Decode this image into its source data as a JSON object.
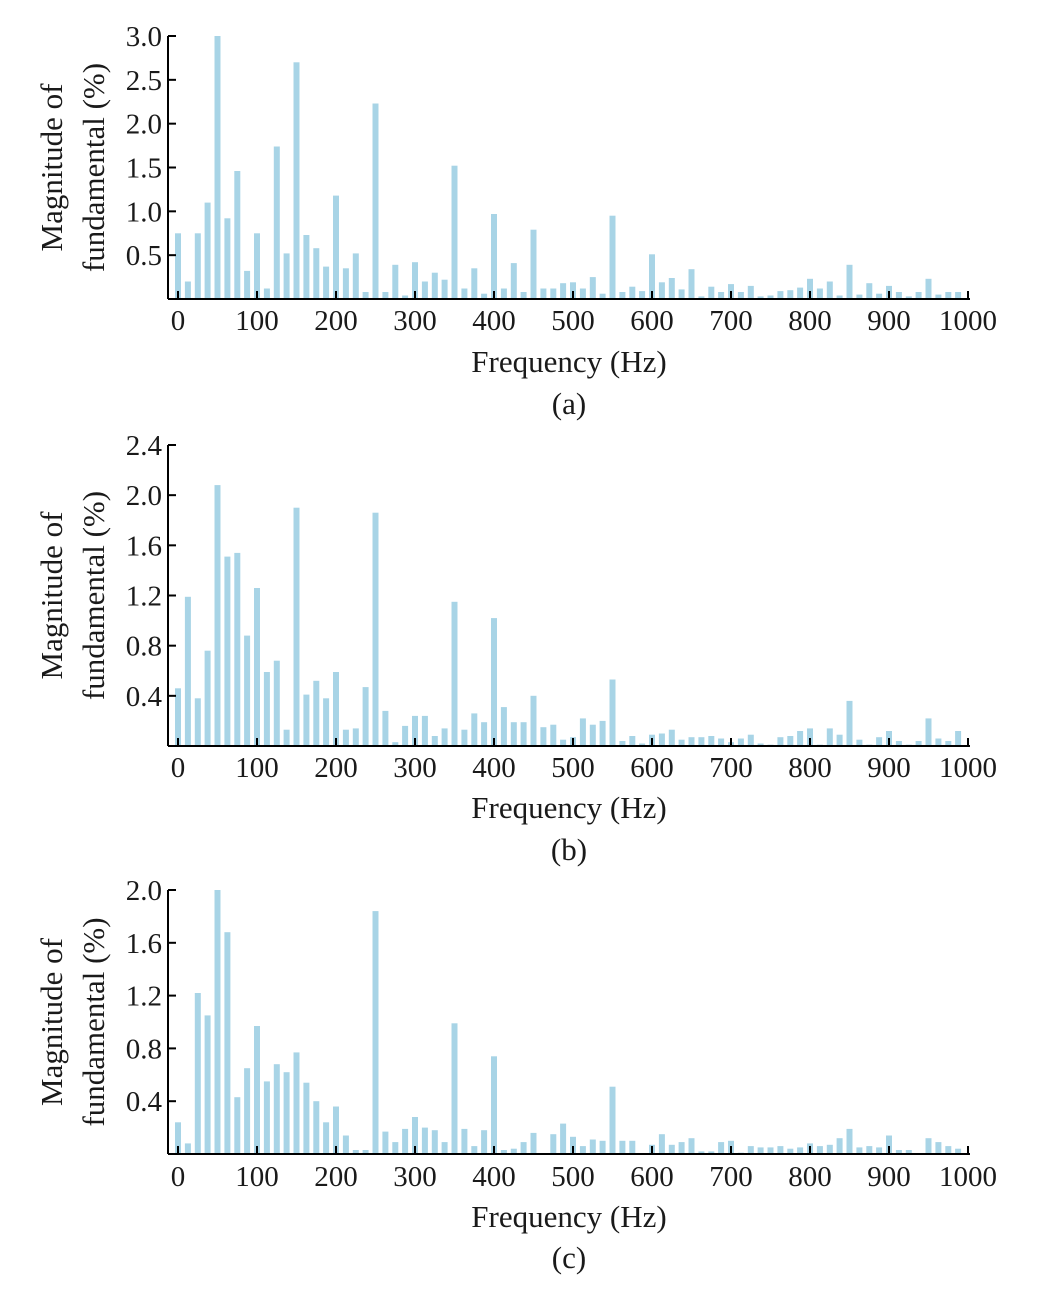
{
  "colors": {
    "bar": "#a8d4e6",
    "axis": "#000000",
    "text": "#1a1a1a"
  },
  "chart_data": [
    {
      "type": "bar",
      "caption": "(a)",
      "xlabel": "Frequency (Hz)",
      "ylabel": [
        "Magnitude of",
        "fundamental (%)"
      ],
      "xlim": [
        0,
        1000
      ],
      "ylim": [
        0,
        3.0
      ],
      "xticks": [
        "0",
        "100",
        "200",
        "300",
        "400",
        "500",
        "600",
        "700",
        "800",
        "900",
        "1000"
      ],
      "yticks": [
        "0.5",
        "1.0",
        "1.5",
        "2.0",
        "2.5",
        "3.0"
      ],
      "grid": false,
      "x": [
        0,
        12.5,
        25,
        37.5,
        50,
        62.5,
        75,
        87.5,
        100,
        112.5,
        125,
        137.5,
        150,
        162.5,
        175,
        187.5,
        200,
        212.5,
        225,
        237.5,
        250,
        262.5,
        275,
        287.5,
        300,
        312.5,
        325,
        337.5,
        350,
        362.5,
        375,
        387.5,
        400,
        412.5,
        425,
        437.5,
        450,
        462.5,
        475,
        487.5,
        500,
        512.5,
        525,
        537.5,
        550,
        562.5,
        575,
        587.5,
        600,
        612.5,
        625,
        637.5,
        650,
        662.5,
        675,
        687.5,
        700,
        712.5,
        725,
        737.5,
        750,
        762.5,
        775,
        787.5,
        800,
        812.5,
        825,
        837.5,
        850,
        862.5,
        875,
        887.5,
        900,
        912.5,
        925,
        937.5,
        950,
        962.5,
        975,
        987.5
      ],
      "values": [
        0.75,
        0.2,
        0.75,
        1.1,
        3.0,
        0.92,
        1.46,
        0.32,
        0.75,
        0.12,
        1.74,
        0.52,
        2.7,
        0.73,
        0.58,
        0.37,
        1.18,
        0.35,
        0.52,
        0.08,
        2.23,
        0.08,
        0.39,
        0.04,
        0.42,
        0.2,
        0.3,
        0.22,
        1.52,
        0.12,
        0.35,
        0.06,
        0.97,
        0.12,
        0.41,
        0.08,
        0.79,
        0.12,
        0.12,
        0.18,
        0.19,
        0.12,
        0.25,
        0.06,
        0.95,
        0.08,
        0.14,
        0.09,
        0.51,
        0.19,
        0.24,
        0.11,
        0.34,
        0.03,
        0.14,
        0.08,
        0.17,
        0.08,
        0.15,
        0.03,
        0.04,
        0.09,
        0.1,
        0.13,
        0.23,
        0.12,
        0.2,
        0.04,
        0.39,
        0.05,
        0.18,
        0.06,
        0.15,
        0.08,
        0.03,
        0.08,
        0.23,
        0.05,
        0.08,
        0.08
      ]
    },
    {
      "type": "bar",
      "caption": "(b)",
      "xlabel": "Frequency (Hz)",
      "ylabel": [
        "Magnitude of",
        "fundamental (%)"
      ],
      "xlim": [
        0,
        1000
      ],
      "ylim": [
        0,
        2.4
      ],
      "xticks": [
        "0",
        "100",
        "200",
        "300",
        "400",
        "500",
        "600",
        "700",
        "800",
        "900",
        "1000"
      ],
      "yticks": [
        "0.4",
        "0.8",
        "1.2",
        "1.6",
        "2.0",
        "2.4"
      ],
      "grid": false,
      "x": [
        0,
        12.5,
        25,
        37.5,
        50,
        62.5,
        75,
        87.5,
        100,
        112.5,
        125,
        137.5,
        150,
        162.5,
        175,
        187.5,
        200,
        212.5,
        225,
        237.5,
        250,
        262.5,
        275,
        287.5,
        300,
        312.5,
        325,
        337.5,
        350,
        362.5,
        375,
        387.5,
        400,
        412.5,
        425,
        437.5,
        450,
        462.5,
        475,
        487.5,
        500,
        512.5,
        525,
        537.5,
        550,
        562.5,
        575,
        587.5,
        600,
        612.5,
        625,
        637.5,
        650,
        662.5,
        675,
        687.5,
        700,
        712.5,
        725,
        737.5,
        750,
        762.5,
        775,
        787.5,
        800,
        812.5,
        825,
        837.5,
        850,
        862.5,
        875,
        887.5,
        900,
        912.5,
        925,
        937.5,
        950,
        962.5,
        975,
        987.5
      ],
      "values": [
        0.46,
        1.19,
        0.38,
        0.76,
        2.08,
        1.51,
        1.54,
        0.88,
        1.26,
        0.59,
        0.68,
        0.13,
        1.9,
        0.41,
        0.52,
        0.38,
        0.59,
        0.13,
        0.14,
        0.47,
        1.86,
        0.28,
        0.03,
        0.16,
        0.24,
        0.24,
        0.08,
        0.14,
        1.15,
        0.13,
        0.26,
        0.19,
        1.02,
        0.31,
        0.19,
        0.19,
        0.4,
        0.15,
        0.17,
        0.05,
        0.07,
        0.22,
        0.17,
        0.2,
        0.53,
        0.04,
        0.08,
        0.02,
        0.09,
        0.1,
        0.13,
        0.05,
        0.07,
        0.07,
        0.08,
        0.06,
        0.03,
        0.06,
        0.09,
        0.02,
        0.01,
        0.07,
        0.08,
        0.12,
        0.14,
        0.01,
        0.14,
        0.09,
        0.36,
        0.05,
        0.01,
        0.07,
        0.12,
        0.04,
        0.01,
        0.04,
        0.22,
        0.06,
        0.04,
        0.12
      ]
    },
    {
      "type": "bar",
      "caption": "(c)",
      "xlabel": "Frequency (Hz)",
      "ylabel": [
        "Magnitude of",
        "fundamental (%)"
      ],
      "xlim": [
        0,
        1000
      ],
      "ylim": [
        0,
        2.0
      ],
      "xticks": [
        "0",
        "100",
        "200",
        "300",
        "400",
        "500",
        "600",
        "700",
        "800",
        "900",
        "1000"
      ],
      "yticks": [
        "0.4",
        "0.8",
        "1.2",
        "1.6",
        "2.0"
      ],
      "grid": false,
      "x": [
        0,
        12.5,
        25,
        37.5,
        50,
        62.5,
        75,
        87.5,
        100,
        112.5,
        125,
        137.5,
        150,
        162.5,
        175,
        187.5,
        200,
        212.5,
        225,
        237.5,
        250,
        262.5,
        275,
        287.5,
        300,
        312.5,
        325,
        337.5,
        350,
        362.5,
        375,
        387.5,
        400,
        412.5,
        425,
        437.5,
        450,
        462.5,
        475,
        487.5,
        500,
        512.5,
        525,
        537.5,
        550,
        562.5,
        575,
        587.5,
        600,
        612.5,
        625,
        637.5,
        650,
        662.5,
        675,
        687.5,
        700,
        712.5,
        725,
        737.5,
        750,
        762.5,
        775,
        787.5,
        800,
        812.5,
        825,
        837.5,
        850,
        862.5,
        875,
        887.5,
        900,
        912.5,
        925,
        937.5,
        950,
        962.5,
        975,
        987.5
      ],
      "values": [
        0.24,
        0.08,
        1.22,
        1.05,
        2.0,
        1.68,
        0.43,
        0.65,
        0.97,
        0.55,
        0.68,
        0.62,
        0.77,
        0.54,
        0.4,
        0.24,
        0.36,
        0.14,
        0.03,
        0.03,
        1.84,
        0.17,
        0.09,
        0.19,
        0.28,
        0.2,
        0.18,
        0.09,
        0.99,
        0.19,
        0.06,
        0.18,
        0.74,
        0.03,
        0.04,
        0.09,
        0.16,
        0.0,
        0.15,
        0.23,
        0.13,
        0.06,
        0.11,
        0.1,
        0.51,
        0.1,
        0.1,
        0.0,
        0.07,
        0.15,
        0.07,
        0.09,
        0.12,
        0.02,
        0.02,
        0.09,
        0.1,
        0.01,
        0.06,
        0.05,
        0.05,
        0.06,
        0.04,
        0.05,
        0.08,
        0.06,
        0.07,
        0.12,
        0.19,
        0.05,
        0.06,
        0.05,
        0.14,
        0.03,
        0.03,
        0.0,
        0.12,
        0.09,
        0.06,
        0.04
      ]
    }
  ]
}
